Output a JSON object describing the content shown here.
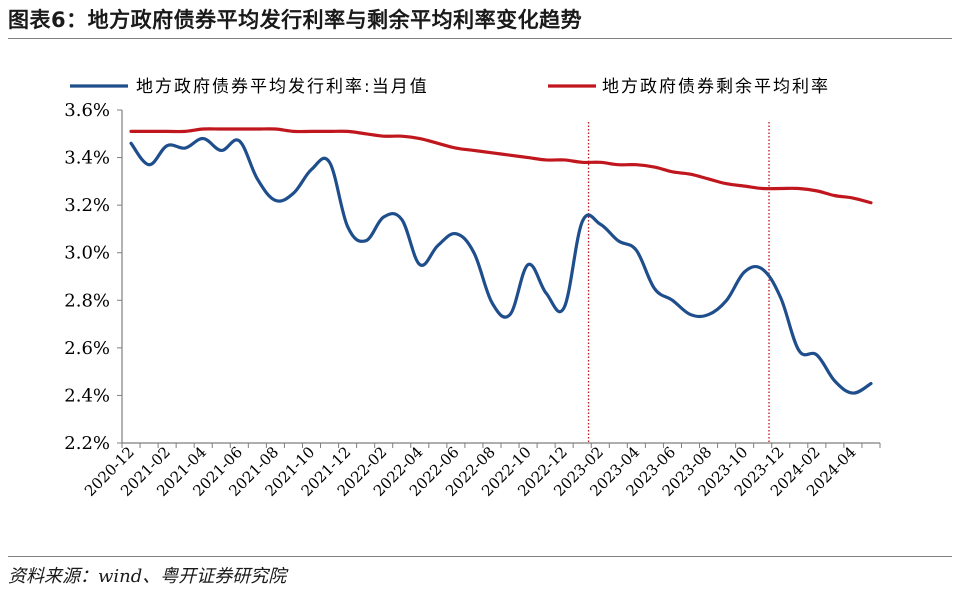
{
  "title": "图表6：地方政府债券平均发行利率与剩余平均利率变化趋势",
  "source": "资料来源：wind、粤开证券研究院",
  "chart_data": {
    "type": "line",
    "title": "图表6：地方政府债券平均发行利率与剩余平均利率变化趋势",
    "xlabel": "",
    "ylabel": "",
    "ylim": [
      2.2,
      3.6
    ],
    "y_ticks": [
      "2.2%",
      "2.4%",
      "2.6%",
      "2.8%",
      "3.0%",
      "3.2%",
      "3.4%",
      "3.6%"
    ],
    "x_tick_labels": [
      "2020-12",
      "2021-02",
      "2021-04",
      "2021-06",
      "2021-08",
      "2021-10",
      "2021-12",
      "2022-02",
      "2022-04",
      "2022-06",
      "2022-08",
      "2022-10",
      "2022-12",
      "2023-02",
      "2023-04",
      "2023-06",
      "2023-08",
      "2023-10",
      "2023-12",
      "2024-02",
      "2024-04"
    ],
    "legend_position": "top",
    "grid": false,
    "x": [
      "2020-12",
      "2021-01",
      "2021-02",
      "2021-03",
      "2021-04",
      "2021-05",
      "2021-06",
      "2021-07",
      "2021-08",
      "2021-09",
      "2021-10",
      "2021-11",
      "2021-12",
      "2022-01",
      "2022-02",
      "2022-03",
      "2022-04",
      "2022-05",
      "2022-06",
      "2022-07",
      "2022-08",
      "2022-09",
      "2022-10",
      "2022-11",
      "2022-12",
      "2023-01",
      "2023-02",
      "2023-03",
      "2023-04",
      "2023-05",
      "2023-06",
      "2023-07",
      "2023-08",
      "2023-09",
      "2023-10",
      "2023-11",
      "2023-12",
      "2024-01",
      "2024-02",
      "2024-03",
      "2024-04",
      "2024-05"
    ],
    "series": [
      {
        "name": "地方政府债券平均发行利率:当月值",
        "color": "#1f4e8c",
        "values": [
          3.46,
          3.37,
          3.45,
          3.44,
          3.48,
          3.43,
          3.47,
          3.31,
          3.22,
          3.25,
          3.35,
          3.38,
          3.11,
          3.05,
          3.15,
          3.14,
          2.95,
          3.03,
          3.08,
          3.0,
          2.79,
          2.74,
          2.95,
          2.83,
          2.77,
          3.13,
          3.12,
          3.05,
          3.01,
          2.85,
          2.8,
          2.74,
          2.74,
          2.8,
          2.92,
          2.93,
          2.81,
          2.59,
          2.57,
          2.46,
          2.41,
          2.45
        ]
      },
      {
        "name": "地方政府债券剩余平均利率",
        "color": "#c0161d",
        "values": [
          3.51,
          3.51,
          3.51,
          3.51,
          3.52,
          3.52,
          3.52,
          3.52,
          3.52,
          3.51,
          3.51,
          3.51,
          3.51,
          3.5,
          3.49,
          3.49,
          3.48,
          3.46,
          3.44,
          3.43,
          3.42,
          3.41,
          3.4,
          3.39,
          3.39,
          3.38,
          3.38,
          3.37,
          3.37,
          3.36,
          3.34,
          3.33,
          3.31,
          3.29,
          3.28,
          3.27,
          3.27,
          3.27,
          3.26,
          3.24,
          3.23,
          3.21
        ]
      }
    ],
    "vertical_markers": [
      "2023-01",
      "2023-11"
    ],
    "marker_color": "#c0161d"
  }
}
